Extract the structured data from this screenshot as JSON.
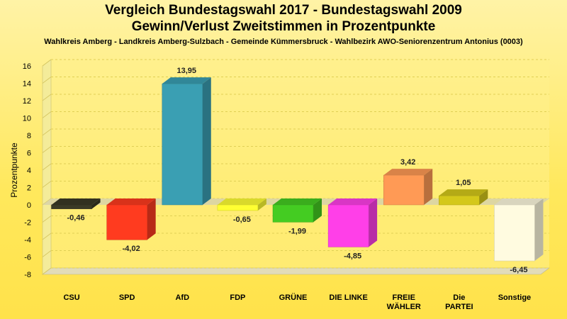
{
  "chart_data": {
    "type": "bar",
    "title_line1": "Vergleich Bundestagswahl 2017 - Bundestagswahl 2009",
    "title_line2": "Gewinn/Verlust Zweitstimmen in Prozentpunkte",
    "subtitle": "Wahlkreis Amberg - Landkreis Amberg-Sulzbach - Gemeinde Kümmersbruck - Wahlbezirk AWO-Seniorenzentrum Antonius (0003)",
    "ylabel": "Prozentpunkte",
    "xlabel": "",
    "ylim": [
      -8,
      16
    ],
    "yticks": [
      "16",
      "14",
      "12",
      "10",
      "8",
      "6",
      "4",
      "2",
      "0",
      "-2",
      "-4",
      "-6",
      "-8"
    ],
    "categories": [
      "CSU",
      "SPD",
      "AfD",
      "FDP",
      "GRÜNE",
      "DIE LINKE",
      "FREIE\nWÄHLER",
      "Die\nPARTEI",
      "Sonstige"
    ],
    "values": [
      -0.46,
      -4.02,
      13.95,
      -0.65,
      -1.99,
      -4.85,
      3.42,
      1.05,
      -6.45
    ],
    "value_labels": [
      "-0,46",
      "-4,02",
      "13,95",
      "-0,65",
      "-1,99",
      "-4,85",
      "3,42",
      "1,05",
      "-6,45"
    ],
    "colors": [
      "#3a3a26",
      "#ff3b1f",
      "#3a9fb3",
      "#ffff33",
      "#44cc22",
      "#ff3fe8",
      "#ff9a55",
      "#d4c81a",
      "#fffbe0"
    ],
    "grid": true
  }
}
